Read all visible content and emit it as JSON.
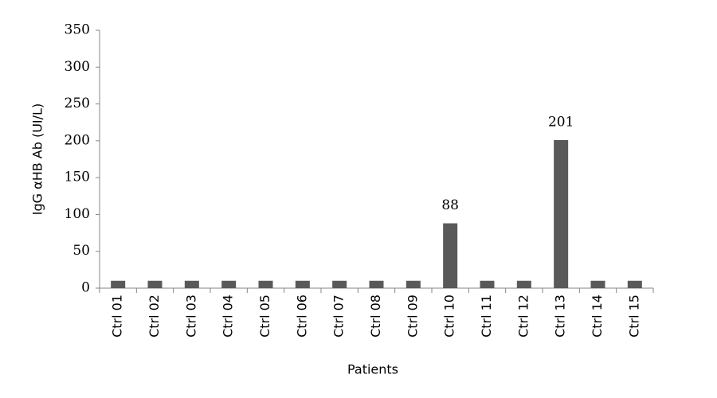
{
  "chart_data": {
    "type": "bar",
    "x_label": "Patients",
    "y_label": "IgG αHB Ab (UI/L)",
    "categories": [
      "Ctrl 01",
      "Ctrl 02",
      "Ctrl 03",
      "Ctrl 04",
      "Ctrl 05",
      "Ctrl 06",
      "Ctrl 07",
      "Ctrl 08",
      "Ctrl 09",
      "Ctrl 10",
      "Ctrl 11",
      "Ctrl 12",
      "Ctrl 13",
      "Ctrl 14",
      "Ctrl 15"
    ],
    "values": [
      10,
      10,
      10,
      10,
      10,
      10,
      10,
      10,
      10,
      88,
      10,
      10,
      201,
      10,
      10
    ],
    "value_labels": [
      null,
      null,
      null,
      null,
      null,
      null,
      null,
      null,
      null,
      "88",
      null,
      null,
      "201",
      null,
      null
    ],
    "color": "#595959",
    "ylim": [
      0,
      350
    ],
    "yticks": [
      0,
      50,
      100,
      150,
      200,
      250,
      300,
      350
    ],
    "grid": false
  }
}
